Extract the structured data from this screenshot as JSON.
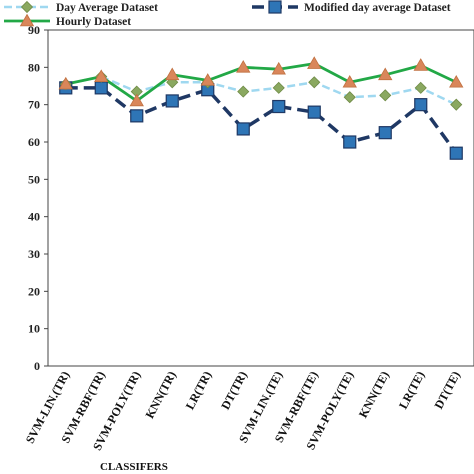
{
  "chart_data": {
    "type": "line",
    "xlabel": "CLASSIFERS",
    "ylabel": "",
    "ylim": [
      0,
      90
    ],
    "yticks": [
      0,
      10,
      20,
      30,
      40,
      50,
      60,
      70,
      80,
      90
    ],
    "grid": false,
    "legend_placement": "top",
    "categories": [
      "SVM-LIN.(TR)",
      "SVM-RBF(TR)",
      "SVM-POLY(TR)",
      "KNN(TR)",
      "LR(TR)",
      "DT(TR)",
      "SVM-LIN.(TE)",
      "SVM-RBF(TE)",
      "SVM-POLY(TE)",
      "KNN(TE)",
      "LR(TE)",
      "DT(TE)"
    ],
    "series": [
      {
        "name": "Day Average Dataset",
        "color": "#9fd8f0",
        "marker": "diamond",
        "marker_color": "#8aa860",
        "values": [
          75.5,
          77.5,
          73.5,
          76,
          76,
          73.5,
          74.5,
          76,
          72,
          72.5,
          74.5,
          70
        ]
      },
      {
        "name": "Modified day average Dataset",
        "color": "#1f3864",
        "marker": "square",
        "marker_color": "#2e75b6",
        "values": [
          74.5,
          74.5,
          67,
          71,
          74,
          63.5,
          69.5,
          68,
          60,
          62.5,
          70,
          57
        ]
      },
      {
        "name": "Hourly Dataset",
        "color": "#22a846",
        "marker": "triangle",
        "marker_color": "#d9865a",
        "values": [
          75.5,
          77.5,
          71,
          78,
          76.5,
          80,
          79.5,
          81,
          76,
          78,
          80.5,
          76
        ]
      }
    ]
  }
}
